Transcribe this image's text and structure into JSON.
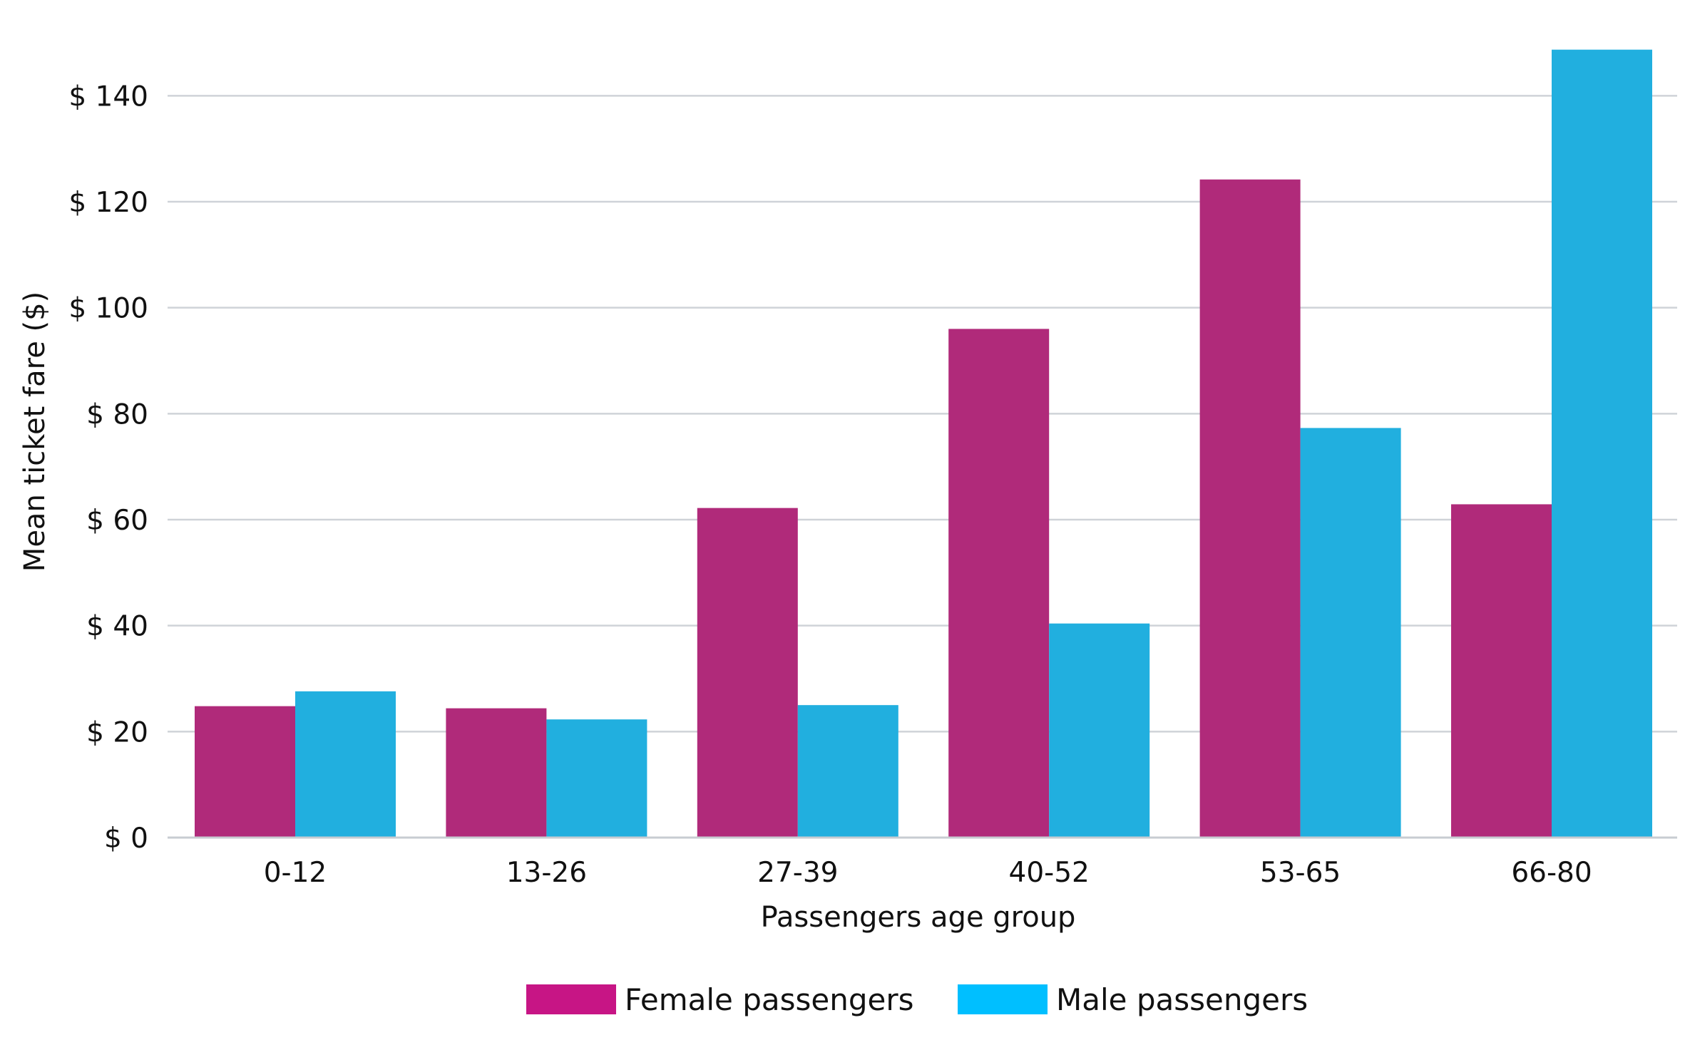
{
  "chart_data": {
    "type": "bar",
    "categories": [
      "0-12",
      "13-26",
      "27-39",
      "40-52",
      "53-65",
      "66-80"
    ],
    "series": [
      {
        "name": "Female passengers",
        "values": [
          24.8,
          24.4,
          62.2,
          96.0,
          124.2,
          62.9
        ],
        "color": "#b02a7a",
        "legend_color": "#c71585"
      },
      {
        "name": "Male passengers",
        "values": [
          27.6,
          22.3,
          25.0,
          40.4,
          77.3,
          148.7
        ],
        "color": "#21afdf",
        "legend_color": "#00bfff"
      }
    ],
    "xlabel": "Passengers age group",
    "ylabel": "Mean ticket fare ($)",
    "ylim": [
      0,
      150
    ],
    "yticks": [
      0,
      20,
      40,
      60,
      80,
      100,
      120,
      140
    ],
    "ytick_labels": [
      "$ 0",
      "$ 20",
      "$ 40",
      "$ 60",
      "$ 80",
      "$ 100",
      "$ 120",
      "$ 140"
    ],
    "grid": "horizontal",
    "legend_position": "bottom-center"
  }
}
